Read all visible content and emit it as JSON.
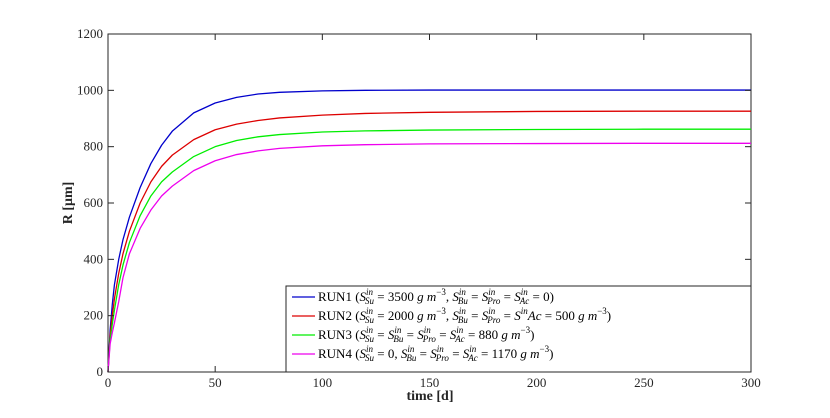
{
  "chart_data": {
    "type": "line",
    "xlabel": "time [d]",
    "ylabel": "R [μm]",
    "xlim": [
      0,
      300
    ],
    "ylim": [
      0,
      1200
    ],
    "xticks": [
      "0",
      "50",
      "100",
      "150",
      "200",
      "250",
      "300"
    ],
    "yticks": [
      "0",
      "200",
      "400",
      "600",
      "800",
      "1000",
      "1200"
    ],
    "grid": false,
    "legend_position": "bottom-right",
    "series": [
      {
        "name": "RUN1 (S_Su^in = 3500 g m^-3, S_Bu^in = S_Pro^in = S_Ac^in = 0)",
        "color": "#0000cc",
        "x": [
          0,
          1,
          2,
          3,
          5,
          7,
          10,
          15,
          20,
          25,
          30,
          40,
          50,
          60,
          70,
          80,
          100,
          120,
          150,
          200,
          250,
          300
        ],
        "y": [
          0,
          150,
          240,
          310,
          400,
          470,
          550,
          655,
          740,
          805,
          855,
          920,
          955,
          975,
          987,
          993,
          998,
          1000,
          1001,
          1001,
          1001,
          1001
        ]
      },
      {
        "name": "RUN2 (S_Su^in = 2000 g m^-3, S_Bu^in = S_Pro^in = S^in Ac = 500 g m^-3)",
        "color": "#dd0000",
        "x": [
          0,
          1,
          2,
          3,
          5,
          7,
          10,
          15,
          20,
          25,
          30,
          40,
          50,
          60,
          70,
          80,
          100,
          120,
          150,
          200,
          250,
          300
        ],
        "y": [
          0,
          130,
          200,
          260,
          350,
          420,
          500,
          600,
          675,
          730,
          770,
          825,
          860,
          880,
          893,
          902,
          912,
          918,
          922,
          925,
          926,
          926
        ]
      },
      {
        "name": "RUN3 (S_Su^in = S_Bu^in = S_Pro^in = S_Ac^in = 880 g m^-3)",
        "color": "#00ee00",
        "x": [
          0,
          1,
          2,
          3,
          5,
          7,
          10,
          15,
          20,
          25,
          30,
          40,
          50,
          60,
          70,
          80,
          100,
          120,
          150,
          200,
          250,
          300
        ],
        "y": [
          0,
          115,
          170,
          220,
          310,
          380,
          460,
          555,
          625,
          675,
          710,
          765,
          800,
          822,
          835,
          843,
          852,
          856,
          859,
          861,
          862,
          862
        ]
      },
      {
        "name": "RUN4 (S_Su^in = 0, S_Bu^in = S_Pro^in = S_Ac^in = 1170 g m^-3)",
        "color": "#ee00ee",
        "x": [
          0,
          1,
          2,
          3,
          5,
          7,
          10,
          15,
          20,
          25,
          30,
          40,
          50,
          60,
          70,
          80,
          100,
          120,
          150,
          200,
          250,
          300
        ],
        "y": [
          0,
          100,
          140,
          175,
          250,
          335,
          420,
          510,
          575,
          625,
          660,
          715,
          750,
          772,
          785,
          794,
          803,
          807,
          810,
          811,
          812,
          812
        ]
      }
    ]
  }
}
